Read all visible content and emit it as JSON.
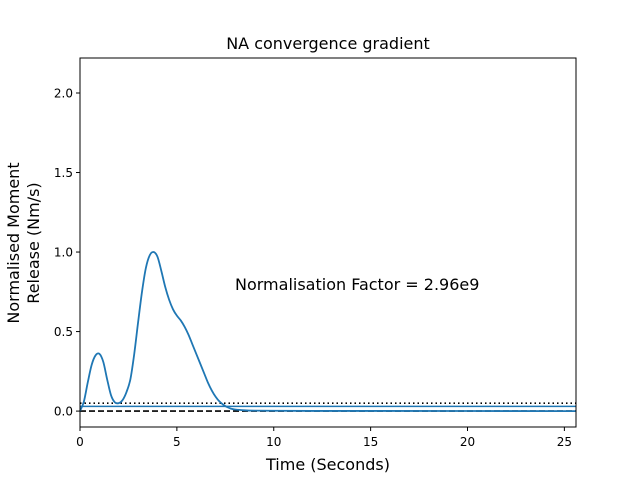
{
  "chart_data": {
    "type": "line",
    "title": "NA convergence gradient",
    "xlabel": "Time (Seconds)",
    "ylabel_lines": [
      "Normalised Moment",
      "Release (Nm/s)"
    ],
    "xlim": [
      0,
      25.6
    ],
    "ylim": [
      -0.1,
      2.22
    ],
    "xticks": [
      0,
      5,
      10,
      15,
      20,
      25
    ],
    "yticks": [
      0.0,
      0.5,
      1.0,
      1.5,
      2.0
    ],
    "xtick_labels": [
      "0",
      "5",
      "10",
      "15",
      "20",
      "25"
    ],
    "ytick_labels": [
      "0.0",
      "0.5",
      "1.0",
      "1.5",
      "2.0"
    ],
    "grid": false,
    "annotation": {
      "text": "Normalisation Factor = 2.96e9",
      "x": 8.0,
      "y": 0.8
    },
    "reference_lines": [
      {
        "y": 0.05,
        "style": "dotted",
        "color": "#000000"
      },
      {
        "y": 0.0,
        "style": "dashed",
        "color": "#000000"
      },
      {
        "y": 0.03,
        "style": "solid",
        "color": "#1f77b4"
      }
    ],
    "series": [
      {
        "color": "#1f77b4",
        "x": [
          0,
          0.2,
          0.4,
          0.6,
          0.8,
          1.0,
          1.2,
          1.4,
          1.6,
          1.8,
          2.0,
          2.2,
          2.4,
          2.6,
          2.8,
          3.0,
          3.2,
          3.4,
          3.6,
          3.8,
          4.0,
          4.2,
          4.4,
          4.6,
          4.8,
          5.0,
          5.2,
          5.4,
          5.6,
          5.8,
          6.0,
          6.2,
          6.4,
          6.6,
          6.8,
          7.0,
          7.2,
          7.4,
          7.6,
          7.8,
          8.0,
          8.5,
          9.0,
          10,
          12,
          15,
          20,
          25.6
        ],
        "y": [
          0.0,
          0.06,
          0.18,
          0.29,
          0.35,
          0.36,
          0.31,
          0.2,
          0.1,
          0.055,
          0.05,
          0.07,
          0.12,
          0.2,
          0.36,
          0.56,
          0.75,
          0.9,
          0.98,
          1.0,
          0.97,
          0.88,
          0.78,
          0.7,
          0.64,
          0.6,
          0.57,
          0.53,
          0.48,
          0.42,
          0.36,
          0.3,
          0.24,
          0.18,
          0.13,
          0.09,
          0.06,
          0.04,
          0.025,
          0.015,
          0.01,
          0.005,
          0.003,
          0.002,
          0.001,
          0.001,
          0.0005,
          0.0
        ]
      }
    ]
  }
}
